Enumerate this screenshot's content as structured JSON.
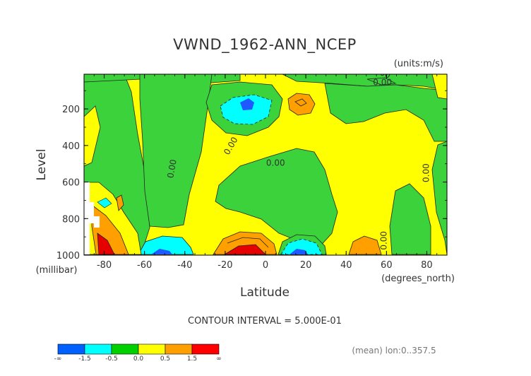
{
  "chart_data": {
    "type": "contour",
    "title": "VWND_1962-ANN_NCEP",
    "units": "(units:m/s)",
    "xlabel": "Latitude",
    "x_units": "(degrees_north)",
    "ylabel": "Level",
    "y_units": "(millibar)",
    "x_ticks": [
      "-80",
      "-60",
      "-40",
      "-20",
      "0",
      "20",
      "40",
      "60",
      "80"
    ],
    "x_tick_values": [
      -80,
      -60,
      -40,
      -20,
      0,
      20,
      40,
      60,
      80
    ],
    "y_ticks": [
      "200",
      "400",
      "600",
      "800",
      "1000"
    ],
    "y_tick_values": [
      200,
      400,
      600,
      800,
      1000
    ],
    "xlim": [
      -90,
      90
    ],
    "ylim": [
      1000,
      10
    ],
    "contour_interval_text": "CONTOUR INTERVAL = 5.000E-01",
    "mean_text": "(mean) lon:0..357.5",
    "contour_labels": [
      {
        "text": "0.00",
        "lat": -9,
        "lev": 10
      },
      {
        "text": "0.00",
        "lat": 57,
        "lev": 15
      },
      {
        "text": "0.00",
        "lat": 58,
        "lev": 70
      },
      {
        "text": "0.00",
        "lat": -16,
        "lev": 410
      },
      {
        "text": "0.00",
        "lat": -45,
        "lev": 530
      },
      {
        "text": "0.00",
        "lat": 5,
        "lev": 510
      },
      {
        "text": "0.00",
        "lat": 81,
        "lev": 550
      },
      {
        "text": "0.00",
        "lat": 60,
        "lev": 920
      }
    ],
    "colorbar": {
      "colors": [
        "#0060ff",
        "#00ffff",
        "#00d000",
        "#ffff00",
        "#ffa000",
        "#ff0000"
      ],
      "labels": [
        "-∞",
        "-1.5",
        "-0.5",
        "0.0",
        "0.5",
        "1.5",
        "∞"
      ]
    },
    "region_colors": {
      "green": "#3cd23c",
      "yellow": "#ffff00",
      "cyan": "#00ffff",
      "blue": "#1e5aff",
      "orange": "#ffa000",
      "red": "#e60000"
    }
  }
}
